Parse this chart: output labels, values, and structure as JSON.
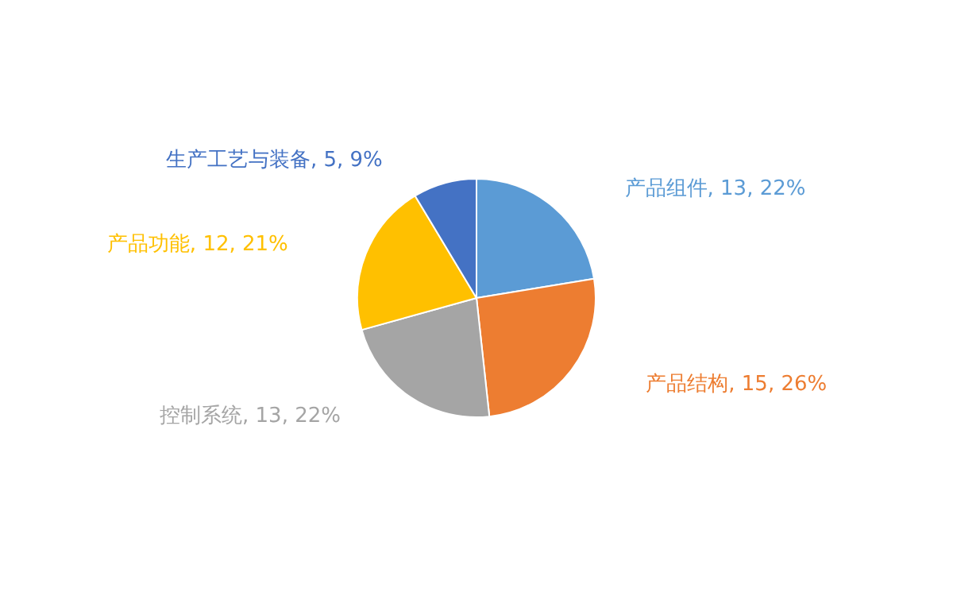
{
  "chart_data": {
    "type": "pie",
    "categories": [
      "产品组件",
      "产品结构",
      "控制系统",
      "产品功能",
      "生产工艺与装备"
    ],
    "values": [
      13,
      15,
      13,
      12,
      5
    ],
    "colors": [
      "#5b9bd5",
      "#ed7d31",
      "#a5a5a5",
      "#ffc000",
      "#4472c4"
    ],
    "value_labels": [
      "13, 22%",
      "15, 26%",
      "13, 22%",
      "12, 21%",
      "5, 9%"
    ],
    "legend": false
  }
}
